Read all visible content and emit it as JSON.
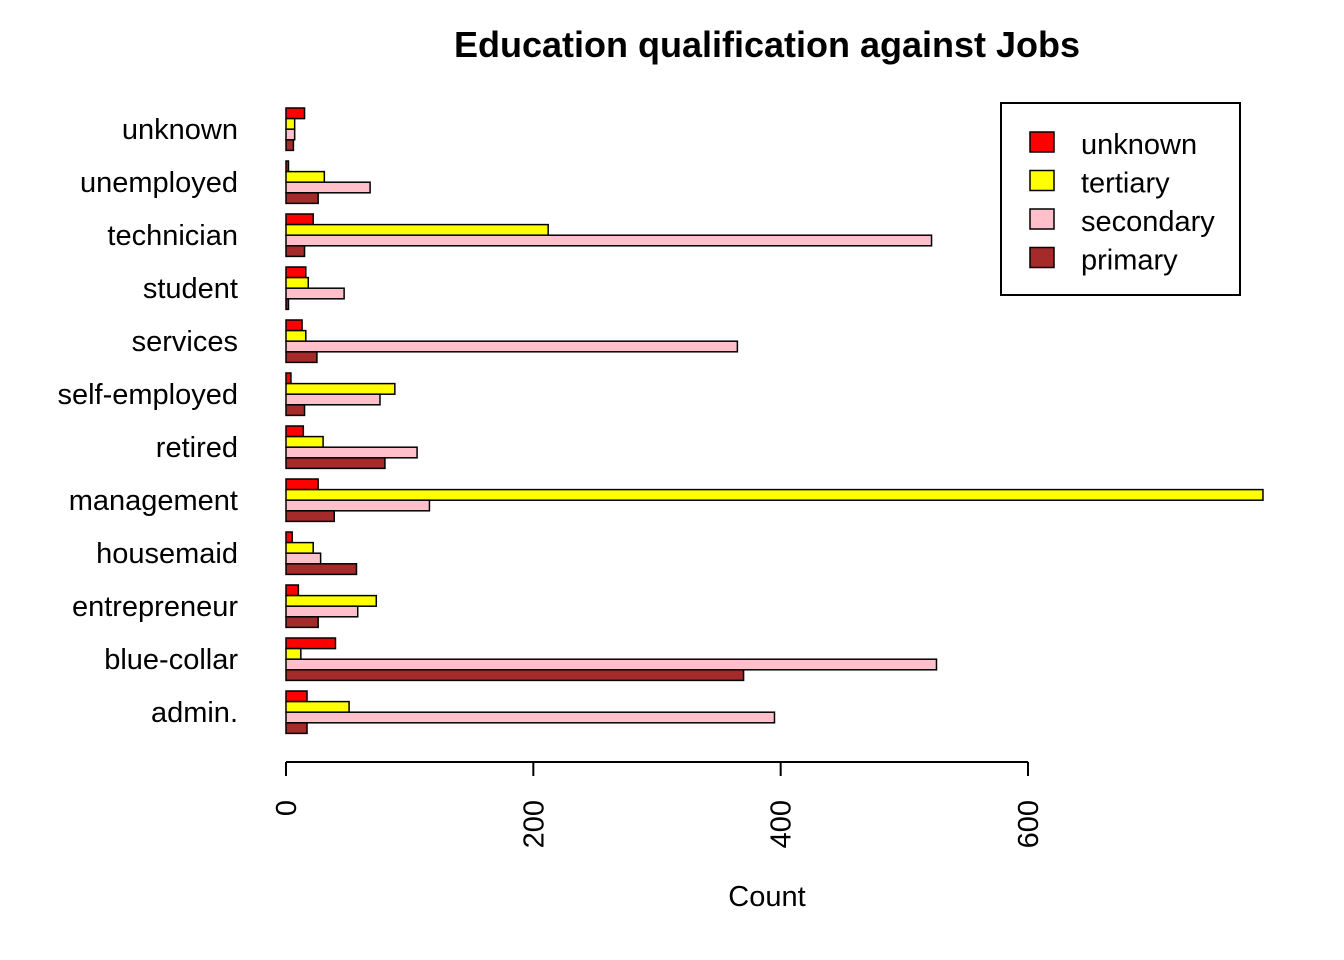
{
  "chart_data": {
    "type": "bar",
    "orientation": "horizontal",
    "title": "Education qualification against Jobs",
    "xlabel": "Count",
    "ylabel": "",
    "xlim": [
      0,
      790
    ],
    "xticks": [
      0,
      200,
      400,
      600
    ],
    "grid": false,
    "legend_position": "top-right",
    "categories": [
      "unknown",
      "unemployed",
      "technician",
      "student",
      "services",
      "self-employed",
      "retired",
      "management",
      "housemaid",
      "entrepreneur",
      "blue-collar",
      "admin."
    ],
    "series": [
      {
        "name": "unknown",
        "color": "#ff0000",
        "values": [
          15,
          2,
          22,
          16,
          13,
          4,
          14,
          26,
          5,
          10,
          40,
          17
        ]
      },
      {
        "name": "tertiary",
        "color": "#ffff00",
        "values": [
          7,
          31,
          212,
          18,
          16,
          88,
          30,
          790,
          22,
          73,
          12,
          51
        ]
      },
      {
        "name": "secondary",
        "color": "#ffc0cb",
        "values": [
          7,
          68,
          522,
          47,
          365,
          76,
          106,
          116,
          28,
          58,
          526,
          395
        ]
      },
      {
        "name": "primary",
        "color": "#a52a2a",
        "values": [
          6,
          26,
          15,
          2,
          25,
          15,
          80,
          39,
          57,
          26,
          370,
          17
        ]
      }
    ]
  }
}
